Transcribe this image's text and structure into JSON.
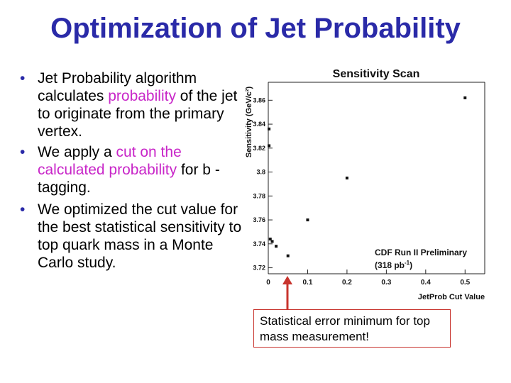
{
  "slide": {
    "title": "Optimization of Jet Probability",
    "bullets": [
      {
        "parts": [
          {
            "text": "Jet Probability algorithm calculates ",
            "hl": false
          },
          {
            "text": "probability",
            "hl": true
          },
          {
            "text": " of the jet to originate from the primary vertex.",
            "hl": false
          }
        ]
      },
      {
        "parts": [
          {
            "text": "We apply a ",
            "hl": false
          },
          {
            "text": "cut on the calculated probability",
            "hl": true
          },
          {
            "text": " for b -tagging.",
            "hl": false
          }
        ]
      },
      {
        "parts": [
          {
            "text": "We optimized the cut value for the best statistical sensitivity to top quark mass in a Monte Carlo study.",
            "hl": false
          }
        ]
      }
    ],
    "callout": "Statistical error minimum for top mass measurement!",
    "colors": {
      "title": "#2a2aa8",
      "highlight": "#c826c8",
      "callout_border": "#c8342e",
      "arrow": "#c8342e"
    }
  },
  "chart_data": {
    "type": "scatter",
    "title": "Sensitivity Scan",
    "xlabel": "JetProb Cut Value",
    "ylabel": "Sensitivity (GeV/c²)",
    "xlim": [
      0,
      0.55
    ],
    "ylim": [
      3.715,
      3.875
    ],
    "x_ticks": [
      "0",
      "0.1",
      "0.2",
      "0.3",
      "0.4",
      "0.5"
    ],
    "y_ticks": [
      "3.72",
      "3.74",
      "3.76",
      "3.78",
      "3.8",
      "3.82",
      "3.84",
      "3.86"
    ],
    "points": [
      {
        "x": 0.002,
        "y": 3.836
      },
      {
        "x": 0.002,
        "y": 3.822
      },
      {
        "x": 0.005,
        "y": 3.744
      },
      {
        "x": 0.01,
        "y": 3.742
      },
      {
        "x": 0.02,
        "y": 3.738
      },
      {
        "x": 0.05,
        "y": 3.73
      },
      {
        "x": 0.1,
        "y": 3.76
      },
      {
        "x": 0.2,
        "y": 3.795
      },
      {
        "x": 0.5,
        "y": 3.862
      }
    ],
    "annotation_line1": "CDF Run II Preliminary",
    "annotation_line2": "(318 pb",
    "annotation_sup": "-1",
    "annotation_close": ")",
    "grid": false
  }
}
